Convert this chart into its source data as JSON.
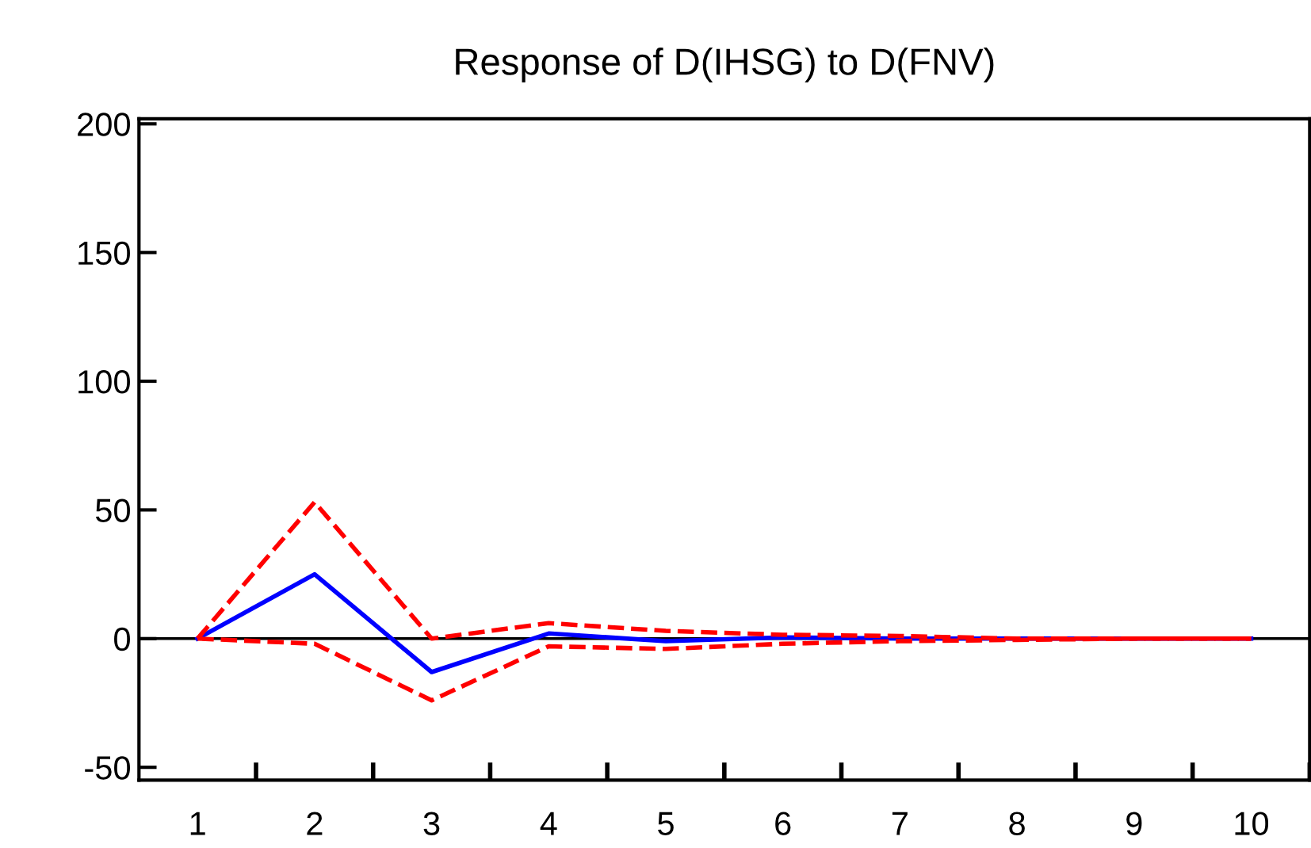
{
  "chart_data": {
    "type": "line",
    "title": "Response of D(IHSG) to D(FNV)",
    "categories": [
      "1",
      "2",
      "3",
      "4",
      "5",
      "6",
      "7",
      "8",
      "9",
      "10"
    ],
    "series": [
      {
        "color": "#0000ff",
        "line_style": "solid",
        "values": [
          0,
          25,
          -13,
          2,
          -1,
          0.5,
          0,
          0,
          0,
          0
        ]
      },
      {
        "color": "#ff0000",
        "line_style": "dashed",
        "values": [
          0,
          53,
          0,
          6,
          3,
          1.5,
          1,
          0,
          0,
          0
        ]
      },
      {
        "color": "#ff0000",
        "line_style": "dashed",
        "values": [
          0,
          -2,
          -24,
          -3,
          -4,
          -2,
          -1,
          -0.5,
          0,
          0
        ]
      }
    ],
    "ylim": [
      -55,
      202
    ],
    "yticks": [
      -50,
      0,
      50,
      100,
      150,
      200
    ],
    "ref_lines": [
      {
        "axis": "y",
        "value": 0,
        "color": "#000000"
      }
    ],
    "grid": false
  }
}
